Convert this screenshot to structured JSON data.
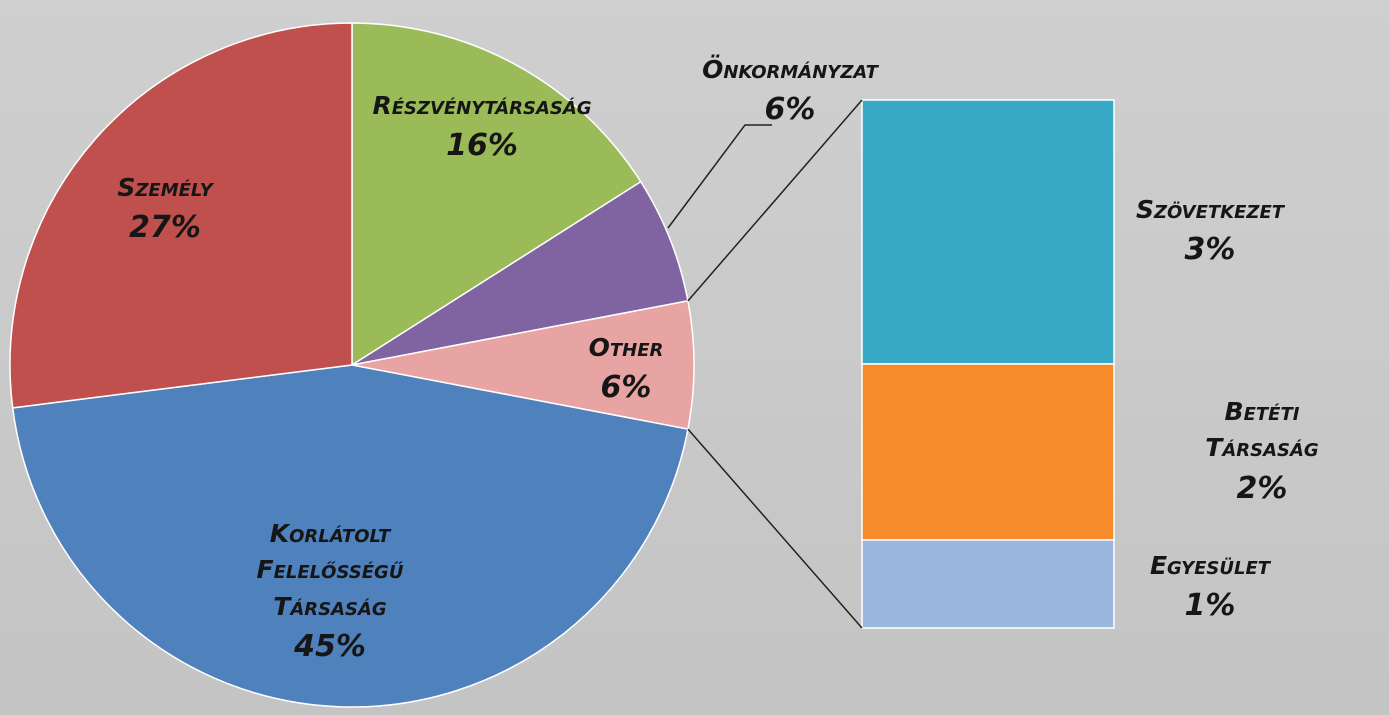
{
  "chart_data": {
    "type": "pie",
    "categories": [
      "Részvénytársaság",
      "Önkormányzat",
      "Other",
      "Korlátolt Felelősségű Társaság",
      "Személy"
    ],
    "values": [
      16,
      6,
      6,
      45,
      27
    ],
    "value_labels": [
      "16%",
      "6%",
      "6%",
      "45%",
      "27%"
    ],
    "colors": [
      "#9bbb59",
      "#8064a2",
      "#e8a4a2",
      "#4f81bd",
      "#c0504d"
    ],
    "breakdown": {
      "categories": [
        "Szövetkezet",
        "Betéti Társaság",
        "Egyesület"
      ],
      "values": [
        3,
        2,
        1
      ],
      "value_labels": [
        "3%",
        "2%",
        "1%"
      ],
      "colors": [
        "#37a9c6",
        "#f68b2c",
        "#9ab7dd"
      ]
    }
  }
}
